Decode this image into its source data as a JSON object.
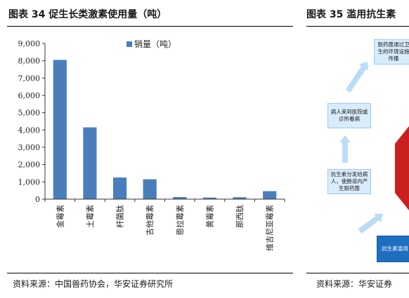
{
  "left_title": "图表 34 促生长类激素使用量（吨）",
  "right_title": "图表 35 滥用抗生素",
  "left_source": "资料来源：中国兽药协会，华安证券研究所",
  "right_source": "资料来源：华安证券",
  "colors": {
    "bar": "#4a7ebb",
    "arrow": "#b9dcf7",
    "box_bg": "#d9ecfb",
    "box_dark": "#1f6fc0",
    "octagon": "#cc1f1f"
  },
  "chart_data": {
    "type": "bar",
    "categories": [
      "金霉素",
      "土霉素",
      "杆菌肽",
      "吉他霉素",
      "恩拉霉素",
      "黄霉素",
      "那西肽",
      "维吉尼亚霉素"
    ],
    "series": [
      {
        "name": "销量（吨）",
        "values": [
          8050,
          4150,
          1250,
          1150,
          120,
          90,
          110,
          460
        ]
      }
    ],
    "ylim": [
      0,
      9000
    ],
    "yticks": [
      "0",
      "1,000",
      "2,000",
      "3,000",
      "4,000",
      "5,000",
      "6,000",
      "7,000",
      "8,000",
      "9,000"
    ],
    "legend_position": "top-center",
    "grid": false
  },
  "flow": {
    "box_top": "耐药菌通过卫生的环境设施传播",
    "box_mid": "病人来到医院或诊所看病",
    "box_low": "抗生素分发给病人，使肠道内产生耐药菌",
    "box_bottom": "抗生素滥用"
  }
}
